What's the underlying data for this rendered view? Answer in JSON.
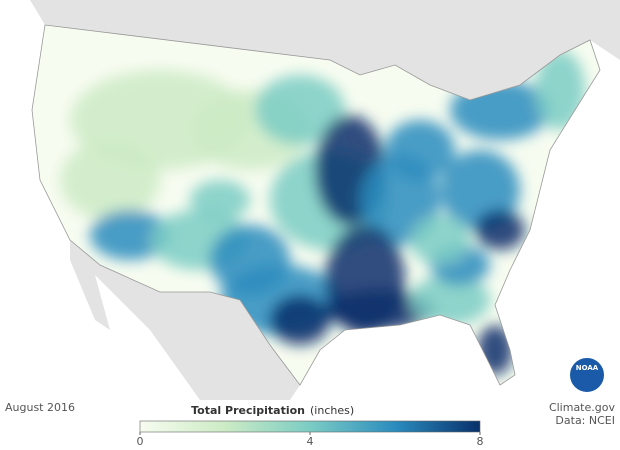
{
  "map": {
    "date": "August 2016",
    "credit": "Climate.gov",
    "source": "Data: NCEI",
    "logo": "NOAA"
  },
  "legend": {
    "title": "Total Precipitation",
    "unit": "(inches)",
    "range": [
      0,
      8
    ],
    "ticks": [
      0,
      4,
      8
    ],
    "colors": [
      "#f7fcf0",
      "#ccebc5",
      "#7bccc4",
      "#2b8cbe",
      "#08306b"
    ]
  }
}
